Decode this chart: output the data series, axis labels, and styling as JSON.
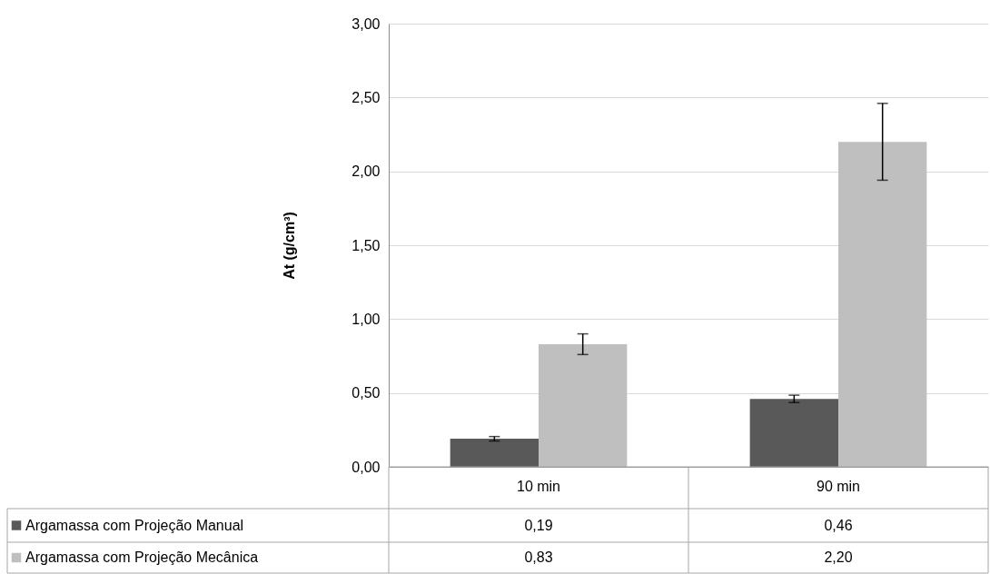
{
  "chart_data": {
    "type": "bar",
    "ylabel": "At (g/cm³)",
    "categories": [
      "10 min",
      "90 min"
    ],
    "series": [
      {
        "name": "Argamassa com Projeção Manual",
        "color": "#595959",
        "values": [
          0.19,
          0.46
        ],
        "errors": [
          0.015,
          0.025
        ],
        "value_labels": [
          "0,19",
          "0,46"
        ]
      },
      {
        "name": "Argamassa com Projeção Mecânica",
        "color": "#bfbfbf",
        "values": [
          0.83,
          2.2
        ],
        "errors": [
          0.07,
          0.26
        ],
        "value_labels": [
          "0,83",
          "2,20"
        ]
      }
    ],
    "ylim": [
      0,
      3
    ],
    "yticks": [
      {
        "value": 0,
        "label": "0,00"
      },
      {
        "value": 0.5,
        "label": "0,50"
      },
      {
        "value": 1,
        "label": "1,00"
      },
      {
        "value": 1.5,
        "label": "1,50"
      },
      {
        "value": 2,
        "label": "2,00"
      },
      {
        "value": 2.5,
        "label": "2,50"
      },
      {
        "value": 3,
        "label": "3,00"
      }
    ],
    "grid": "y",
    "legend": "bottom"
  }
}
